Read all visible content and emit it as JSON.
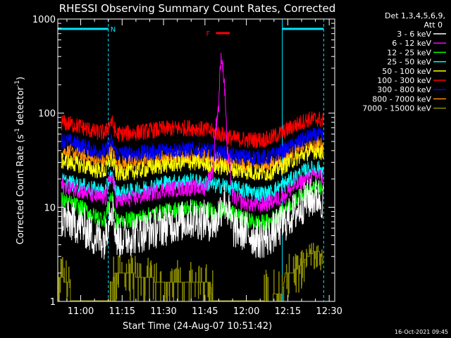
{
  "chart_data": {
    "type": "line",
    "title": "RHESSI Observing Summary Count Rates, Corrected",
    "xlabel": "Start Time (24-Aug-07 10:51:42)",
    "ylabel": "Corrected Count Rate (s⁻¹ detector⁻¹)",
    "ylabel_parts": {
      "main": "Corrected Count Rate (s",
      "sup1": "-1",
      "mid": " detector",
      "sup2": "-1",
      "end": ")"
    },
    "yscale": "log",
    "ylim": [
      1,
      1000
    ],
    "xlim": [
      "10:51:42",
      "12:32:00"
    ],
    "x_ticks": [
      "11:00",
      "11:15",
      "11:30",
      "11:45",
      "12:00",
      "12:15",
      "12:30"
    ],
    "y_ticks": [
      "1",
      "10",
      "100",
      "1000"
    ],
    "legend_header": [
      "Det 1,3,4,5,6,9,",
      "Att 0"
    ],
    "legend_placement": "right",
    "date_stamp": "16-Oct-2021 09:45",
    "flags": [
      {
        "label": "N",
        "type": "night",
        "color": "#00e5ff",
        "segments": [
          [
            "10:51:42",
            "11:10"
          ],
          [
            "12:13",
            "12:28"
          ]
        ]
      },
      {
        "label": "F",
        "type": "flare",
        "color": "#ff0000",
        "segments": [
          [
            "11:49",
            "11:54"
          ]
        ]
      }
    ],
    "series": [
      {
        "name": "3 - 6 keV",
        "color": "#ffffff",
        "time": [
          "10:53",
          "11:00",
          "11:05",
          "11:09",
          "11:11",
          "11:13",
          "11:20",
          "11:30",
          "11:40",
          "11:45",
          "11:49",
          "11:52",
          "11:55",
          "12:00",
          "12:04",
          "12:08",
          "12:13",
          "12:18",
          "12:22",
          "12:26",
          "12:28"
        ],
        "values": [
          7.5,
          6.5,
          4.8,
          4.6,
          11,
          4.6,
          5.2,
          6.3,
          7.5,
          7.3,
          6.8,
          12,
          6,
          5.5,
          4.6,
          4.8,
          6.5,
          9,
          12,
          13,
          11.5
        ]
      },
      {
        "name": "6 - 12 keV",
        "color": "#ff00ff",
        "time": [
          "10:53",
          "11:00",
          "11:05",
          "11:09",
          "11:11",
          "11:13",
          "11:20",
          "11:30",
          "11:40",
          "11:45",
          "11:48",
          "11:50",
          "11:51",
          "11:52",
          "11:53",
          "11:55",
          "11:57",
          "12:00",
          "12:04",
          "12:08",
          "12:13",
          "12:18",
          "12:22",
          "12:26",
          "12:28"
        ],
        "values": [
          17,
          15,
          13,
          12.5,
          22,
          11.5,
          12.5,
          15.5,
          16,
          16,
          25,
          120,
          420,
          200,
          40,
          13,
          12,
          11,
          10.5,
          11,
          13,
          17,
          20,
          22,
          20
        ]
      },
      {
        "name": "12 - 25 keV",
        "color": "#00ff00",
        "time": [
          "10:53",
          "11:00",
          "11:05",
          "11:09",
          "11:11",
          "11:13",
          "11:20",
          "11:30",
          "11:40",
          "11:45",
          "11:49",
          "11:52",
          "11:55",
          "12:00",
          "12:04",
          "12:08",
          "12:13",
          "12:18",
          "12:22",
          "12:26",
          "12:28"
        ],
        "values": [
          12,
          10,
          8,
          7.5,
          13.5,
          7,
          7.5,
          9,
          10,
          9.5,
          9,
          9.5,
          8.5,
          7.5,
          6.8,
          7,
          9,
          12,
          15,
          16,
          15
        ]
      },
      {
        "name": "25 - 50 keV",
        "color": "#00ffff",
        "time": [
          "10:53",
          "11:00",
          "11:05",
          "11:09",
          "11:11",
          "11:13",
          "11:20",
          "11:30",
          "11:40",
          "11:45",
          "11:49",
          "11:52",
          "11:55",
          "12:00",
          "12:04",
          "12:08",
          "12:13",
          "12:18",
          "12:22",
          "12:26",
          "12:28"
        ],
        "values": [
          19,
          17,
          15.5,
          14.8,
          22,
          14,
          15,
          18,
          19,
          18,
          17,
          17,
          16,
          15,
          14,
          14,
          17,
          21,
          25,
          26,
          24
        ]
      },
      {
        "name": "50 - 100 keV",
        "color": "#ffff00",
        "time": [
          "10:53",
          "11:00",
          "11:05",
          "11:09",
          "11:11",
          "11:13",
          "11:20",
          "11:30",
          "11:40",
          "11:45",
          "11:49",
          "11:52",
          "11:55",
          "12:00",
          "12:04",
          "12:08",
          "12:13",
          "12:18",
          "12:22",
          "12:26",
          "12:28"
        ],
        "values": [
          31,
          28,
          25,
          24,
          33,
          23,
          24,
          28,
          30,
          29,
          27,
          27,
          25,
          24,
          23,
          23,
          27,
          33,
          38,
          40,
          37
        ]
      },
      {
        "name": "100 - 300 keV",
        "color": "#ff0000",
        "time": [
          "10:53",
          "11:00",
          "11:05",
          "11:09",
          "11:11",
          "11:13",
          "11:20",
          "11:30",
          "11:40",
          "11:45",
          "11:49",
          "11:52",
          "11:55",
          "12:00",
          "12:04",
          "12:08",
          "12:13",
          "12:18",
          "12:22",
          "12:26",
          "12:28"
        ],
        "values": [
          80,
          72,
          63,
          62,
          82,
          60,
          62,
          68,
          70,
          67,
          62,
          58,
          54,
          52,
          52,
          53,
          62,
          75,
          85,
          87,
          82
        ]
      },
      {
        "name": "300 - 800 keV",
        "color": "#0000ff",
        "time": [
          "10:53",
          "11:00",
          "11:05",
          "11:09",
          "11:11",
          "11:13",
          "11:20",
          "11:30",
          "11:40",
          "11:45",
          "11:49",
          "11:52",
          "11:55",
          "12:00",
          "12:04",
          "12:08",
          "12:13",
          "12:18",
          "12:22",
          "12:26",
          "12:28"
        ],
        "values": [
          52,
          46,
          40,
          39,
          50,
          37,
          37,
          40,
          41,
          40,
          38,
          37,
          35,
          34,
          34,
          34,
          39,
          47,
          55,
          58,
          55
        ]
      },
      {
        "name": "800 - 7000 keV",
        "color": "#ff8c00",
        "time": [
          "10:53",
          "11:00",
          "11:05",
          "11:09",
          "11:11",
          "11:13",
          "11:20",
          "11:30",
          "11:40",
          "11:45",
          "11:49",
          "11:52",
          "11:55",
          "12:00",
          "12:04",
          "12:08",
          "12:13",
          "12:18",
          "12:22",
          "12:26",
          "12:28"
        ],
        "values": [
          40,
          36,
          31,
          30,
          40,
          29,
          30,
          34,
          36,
          35,
          32,
          31,
          29,
          28,
          27,
          28,
          32,
          39,
          45,
          47,
          44
        ]
      },
      {
        "name": "7000 - 15000 keV",
        "color": "#8b8b00",
        "time": [
          "10:51:42",
          "10:56",
          "10:57",
          "11:10",
          "11:11",
          "11:13",
          "11:33",
          "11:35",
          "11:47",
          "11:49",
          "12:13",
          "12:14",
          "12:17",
          "12:20",
          "12:22",
          "12:24",
          "12:26",
          "12:28"
        ],
        "values": [
          2,
          1.6,
          0,
          0,
          1.6,
          2.2,
          1.6,
          1.8,
          1.6,
          0,
          1.4,
          2,
          2.2,
          2.6,
          3,
          3.4,
          3.6,
          2.8
        ]
      }
    ]
  }
}
